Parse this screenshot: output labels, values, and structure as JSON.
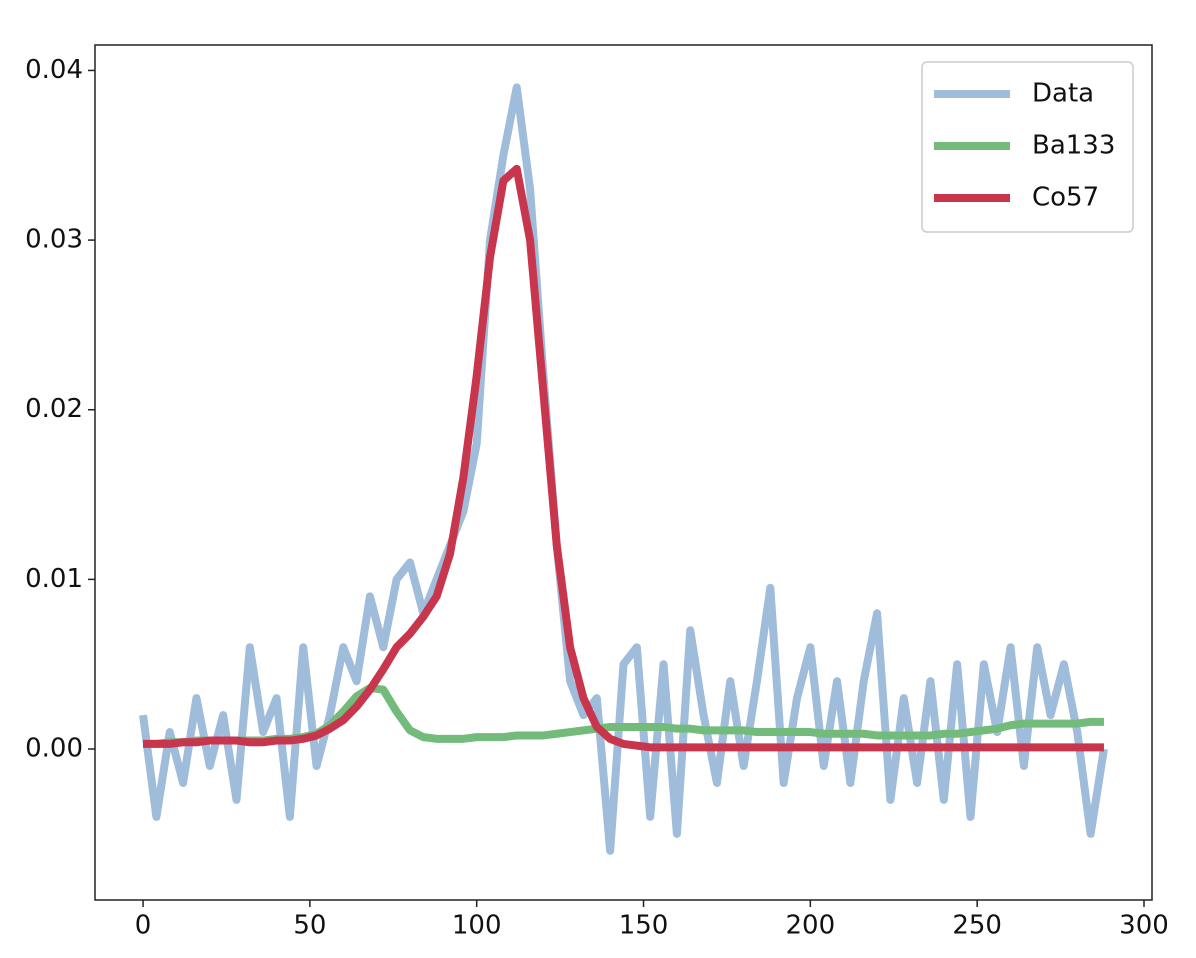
{
  "chart_data": {
    "type": "line",
    "x": [
      0,
      4,
      8,
      12,
      16,
      20,
      24,
      28,
      32,
      36,
      40,
      44,
      48,
      52,
      56,
      60,
      64,
      68,
      72,
      76,
      80,
      84,
      88,
      92,
      96,
      100,
      104,
      108,
      112,
      116,
      120,
      124,
      128,
      132,
      136,
      140,
      144,
      148,
      152,
      156,
      160,
      164,
      168,
      172,
      176,
      180,
      184,
      188,
      192,
      196,
      200,
      204,
      208,
      212,
      216,
      220,
      224,
      228,
      232,
      236,
      240,
      244,
      248,
      252,
      256,
      260,
      264,
      268,
      272,
      276,
      280,
      284,
      288
    ],
    "series": [
      {
        "name": "Data",
        "color": "#9fbcdb",
        "values": [
          0.002,
          -0.004,
          0.001,
          -0.002,
          0.003,
          -0.001,
          0.002,
          -0.003,
          0.006,
          0.001,
          0.003,
          -0.004,
          0.006,
          -0.001,
          0.002,
          0.006,
          0.004,
          0.009,
          0.006,
          0.01,
          0.011,
          0.008,
          0.01,
          0.012,
          0.014,
          0.018,
          0.03,
          0.035,
          0.039,
          0.033,
          0.022,
          0.012,
          0.004,
          0.002,
          0.003,
          -0.006,
          0.005,
          0.006,
          -0.004,
          0.005,
          -0.005,
          0.007,
          0.002,
          -0.002,
          0.004,
          -0.001,
          0.004,
          0.0095,
          -0.002,
          0.003,
          0.006,
          -0.001,
          0.004,
          -0.002,
          0.004,
          0.008,
          -0.003,
          0.003,
          -0.002,
          0.004,
          -0.003,
          0.005,
          -0.004,
          0.005,
          0.001,
          0.006,
          -0.001,
          0.006,
          0.002,
          0.005,
          0.001,
          -0.005,
          0.0
        ]
      },
      {
        "name": "Ba133",
        "color": "#72bb7b",
        "values": [
          0.0003,
          0.0003,
          0.0004,
          0.0004,
          0.0005,
          0.0005,
          0.0005,
          0.0005,
          0.0005,
          0.0005,
          0.0006,
          0.0006,
          0.0007,
          0.0009,
          0.0014,
          0.0022,
          0.0031,
          0.0036,
          0.0035,
          0.0022,
          0.0011,
          0.0007,
          0.0006,
          0.0006,
          0.0006,
          0.0007,
          0.0007,
          0.0007,
          0.0008,
          0.0008,
          0.0008,
          0.0009,
          0.001,
          0.0011,
          0.0012,
          0.0013,
          0.0013,
          0.0013,
          0.0013,
          0.0013,
          0.0012,
          0.0012,
          0.0011,
          0.0011,
          0.0011,
          0.0011,
          0.001,
          0.001,
          0.001,
          0.001,
          0.001,
          0.0009,
          0.0009,
          0.0009,
          0.0009,
          0.0008,
          0.0008,
          0.0008,
          0.0008,
          0.0008,
          0.0009,
          0.0009,
          0.001,
          0.0011,
          0.0012,
          0.0014,
          0.0015,
          0.0015,
          0.0015,
          0.0015,
          0.0015,
          0.0016,
          0.0016
        ]
      },
      {
        "name": "Co57",
        "color": "#c8364d",
        "values": [
          0.0003,
          0.0003,
          0.0003,
          0.0004,
          0.0004,
          0.0005,
          0.0005,
          0.0005,
          0.0004,
          0.0004,
          0.0005,
          0.0005,
          0.0006,
          0.0008,
          0.0012,
          0.0017,
          0.0025,
          0.0035,
          0.0047,
          0.006,
          0.0068,
          0.0078,
          0.009,
          0.0115,
          0.016,
          0.022,
          0.029,
          0.0335,
          0.0342,
          0.03,
          0.021,
          0.012,
          0.006,
          0.003,
          0.0013,
          0.0006,
          0.0003,
          0.0002,
          0.0001,
          0.0001,
          0.0001,
          0.0001,
          0.0001,
          0.0001,
          0.0001,
          0.0001,
          0.0001,
          0.0001,
          0.0001,
          0.0001,
          0.0001,
          0.0001,
          0.0001,
          0.0001,
          0.0001,
          0.0001,
          0.0001,
          0.0001,
          0.0001,
          0.0001,
          0.0001,
          0.0001,
          0.0001,
          0.0001,
          0.0001,
          0.0001,
          0.0001,
          0.0001,
          0.0001,
          0.0001,
          0.0001,
          0.0001,
          0.0001
        ]
      }
    ],
    "xlim": [
      -14.4,
      302.4
    ],
    "ylim": [
      -0.0089,
      0.0415
    ],
    "xticks": [
      0,
      50,
      100,
      150,
      200,
      250,
      300
    ],
    "yticks": [
      {
        "value": 0,
        "label": "0.00"
      },
      0.01,
      0.02,
      0.03,
      0.04
    ],
    "grid": false,
    "legend": "upper right"
  }
}
